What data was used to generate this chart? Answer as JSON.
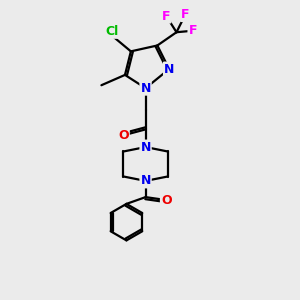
{
  "background_color": "#ebebeb",
  "bond_color": "#000000",
  "bond_width": 1.6,
  "atom_colors": {
    "N": "#0000ee",
    "O": "#ee0000",
    "Cl": "#00bb00",
    "F": "#ff00ff",
    "C": "#000000"
  }
}
